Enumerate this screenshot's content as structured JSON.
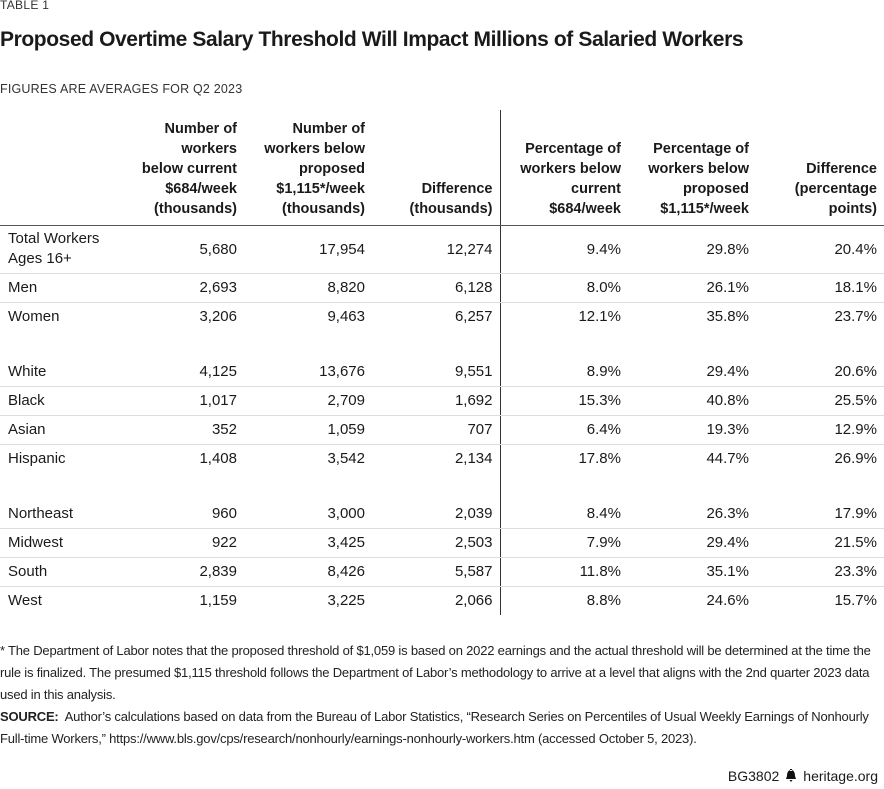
{
  "label": "TABLE 1",
  "title": "Proposed Overtime Salary Threshold Will Impact Millions of Salaried Workers",
  "subtitle": "FIGURES ARE AVERAGES FOR Q2 2023",
  "table": {
    "headers": [
      "Number of workers below current $684/week (thousands)",
      "Number of workers below proposed $1,115*/week (thousands)",
      "Difference (thousands)",
      "Percentage of workers below current $684/week",
      "Percentage of workers below proposed $1,115*/week",
      "Difference (percentage points)"
    ],
    "groups": [
      [
        [
          "Total Workers Ages 16+",
          "5,680",
          "17,954",
          "12,274",
          "9.4%",
          "29.8%",
          "20.4%"
        ],
        [
          "Men",
          "2,693",
          "8,820",
          "6,128",
          "8.0%",
          "26.1%",
          "18.1%"
        ],
        [
          "Women",
          "3,206",
          "9,463",
          "6,257",
          "12.1%",
          "35.8%",
          "23.7%"
        ]
      ],
      [
        [
          "White",
          "4,125",
          "13,676",
          "9,551",
          "8.9%",
          "29.4%",
          "20.6%"
        ],
        [
          "Black",
          "1,017",
          "2,709",
          "1,692",
          "15.3%",
          "40.8%",
          "25.5%"
        ],
        [
          "Asian",
          "352",
          "1,059",
          "707",
          "6.4%",
          "19.3%",
          "12.9%"
        ],
        [
          "Hispanic",
          "1,408",
          "3,542",
          "2,134",
          "17.8%",
          "44.7%",
          "26.9%"
        ]
      ],
      [
        [
          "Northeast",
          "960",
          "3,000",
          "2,039",
          "8.4%",
          "26.3%",
          "17.9%"
        ],
        [
          "Midwest",
          "922",
          "3,425",
          "2,503",
          "7.9%",
          "29.4%",
          "21.5%"
        ],
        [
          "South",
          "2,839",
          "8,426",
          "5,587",
          "11.8%",
          "35.1%",
          "23.3%"
        ],
        [
          "West",
          "1,159",
          "3,225",
          "2,066",
          "8.8%",
          "24.6%",
          "15.7%"
        ]
      ]
    ]
  },
  "footnote": "* The Department of Labor notes that the proposed threshold of $1,059 is based on 2022 earnings and the actual threshold will be determined at the time the rule is finalized. The presumed $1,115 threshold follows the Department of Labor’s methodology to arrive at a level that aligns with the 2nd quarter 2023 data used in this analysis.",
  "source_label": "SOURCE:",
  "source": "Author’s calculations based on data from the Bureau of Labor Statistics, “Research Series on Percentiles of Usual Weekly Earnings of Nonhourly Full-time Workers,” https://www.bls.gov/cps/research/nonhourly/earnings-nonhourly-workers.htm (accessed October 5, 2023).",
  "footer": {
    "code": "BG3802",
    "site": "heritage.org"
  }
}
